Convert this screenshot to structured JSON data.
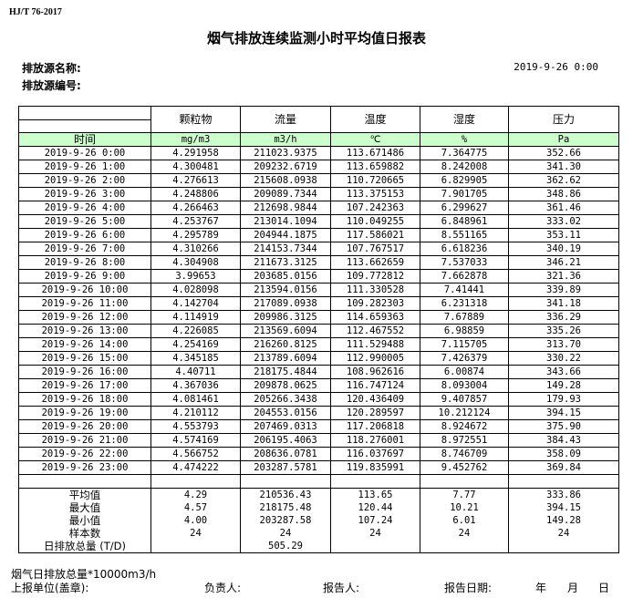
{
  "header": {
    "standard": "HJ/T  76-2017",
    "title": "烟气排放连续监测小时平均值日报表",
    "source_name_label": "排放源名称:",
    "source_id_label": "排放源编号:",
    "report_time": "2019-9-26 0:00"
  },
  "table": {
    "columns": [
      "颗粒物",
      "流量",
      "温度",
      "湿度",
      "压力"
    ],
    "time_label": "时间",
    "units": [
      "mg/m3",
      "m3/h",
      "℃",
      "%",
      "Pa"
    ],
    "rows": [
      [
        "2019-9-26 0:00",
        "4.291958",
        "211023.9375",
        "113.671486",
        "7.364775",
        "352.66"
      ],
      [
        "2019-9-26 1:00",
        "4.300481",
        "209232.6719",
        "113.659882",
        "8.242008",
        "341.30"
      ],
      [
        "2019-9-26 2:00",
        "4.276613",
        "215608.0938",
        "110.720665",
        "6.829905",
        "362.62"
      ],
      [
        "2019-9-26 3:00",
        "4.248806",
        "209089.7344",
        "113.375153",
        "7.901705",
        "348.86"
      ],
      [
        "2019-9-26 4:00",
        "4.266463",
        "212698.9844",
        "107.242363",
        "6.299627",
        "361.46"
      ],
      [
        "2019-9-26 5:00",
        "4.253767",
        "213014.1094",
        "110.049255",
        "6.848961",
        "333.02"
      ],
      [
        "2019-9-26 6:00",
        "4.295789",
        "204944.1875",
        "117.586021",
        "8.551165",
        "353.11"
      ],
      [
        "2019-9-26 7:00",
        "4.310266",
        "214153.7344",
        "107.767517",
        "6.618236",
        "340.19"
      ],
      [
        "2019-9-26 8:00",
        "4.304908",
        "211673.3125",
        "113.662659",
        "7.537033",
        "346.21"
      ],
      [
        "2019-9-26 9:00",
        "3.99653",
        "203685.0156",
        "109.772812",
        "7.662878",
        "321.36"
      ],
      [
        "2019-9-26 10:00",
        "4.028098",
        "213594.0156",
        "111.330528",
        "7.41441",
        "339.89"
      ],
      [
        "2019-9-26 11:00",
        "4.142704",
        "217089.0938",
        "109.282303",
        "6.231318",
        "341.18"
      ],
      [
        "2019-9-26 12:00",
        "4.114919",
        "209986.3125",
        "114.659363",
        "7.67889",
        "336.29"
      ],
      [
        "2019-9-26 13:00",
        "4.226085",
        "213569.6094",
        "112.467552",
        "6.98859",
        "335.26"
      ],
      [
        "2019-9-26 14:00",
        "4.254169",
        "216260.8125",
        "111.529488",
        "7.115705",
        "313.70"
      ],
      [
        "2019-9-26 15:00",
        "4.345185",
        "213789.6094",
        "112.990005",
        "7.426379",
        "330.22"
      ],
      [
        "2019-9-26 16:00",
        "4.40711",
        "218175.4844",
        "108.962616",
        "6.00874",
        "343.66"
      ],
      [
        "2019-9-26 17:00",
        "4.367036",
        "209878.0625",
        "116.747124",
        "8.093004",
        "149.28"
      ],
      [
        "2019-9-26 18:00",
        "4.081461",
        "205266.3438",
        "120.436409",
        "9.407857",
        "179.93"
      ],
      [
        "2019-9-26 19:00",
        "4.210112",
        "204553.0156",
        "120.289597",
        "10.212124",
        "394.15"
      ],
      [
        "2019-9-26 20:00",
        "4.553793",
        "207469.0313",
        "117.206818",
        "8.924672",
        "375.90"
      ],
      [
        "2019-9-26 21:00",
        "4.574169",
        "206195.4063",
        "118.276001",
        "8.972551",
        "384.43"
      ],
      [
        "2019-9-26 22:00",
        "4.566752",
        "208636.0781",
        "116.037697",
        "8.746709",
        "358.09"
      ],
      [
        "2019-9-26 23:00",
        "4.474222",
        "203287.5781",
        "119.835991",
        "9.452762",
        "369.84"
      ]
    ],
    "summary": [
      [
        "平均值",
        "4.29",
        "210536.43",
        "113.65",
        "7.77",
        "333.86"
      ],
      [
        "最大值",
        "4.57",
        "218175.48",
        "120.44",
        "10.21",
        "394.15"
      ],
      [
        "最小值",
        "4.00",
        "203287.58",
        "107.24",
        "6.01",
        "149.28"
      ],
      [
        "样本数",
        "24",
        "24",
        "24",
        "24",
        "24"
      ],
      [
        "日排放总量 (T/D)",
        "",
        "505.29",
        "",
        "",
        ""
      ]
    ]
  },
  "footer": {
    "note": "烟气日排放总量*10000m3/h",
    "unit_label": "上报单位(盖章):",
    "responsible_label": "负责人:",
    "reporter_label": "报告人:",
    "date_label": "报告日期:",
    "year": "年",
    "month": "月",
    "day": "日"
  },
  "colors": {
    "unit_row_bg": "#ccffcc"
  }
}
